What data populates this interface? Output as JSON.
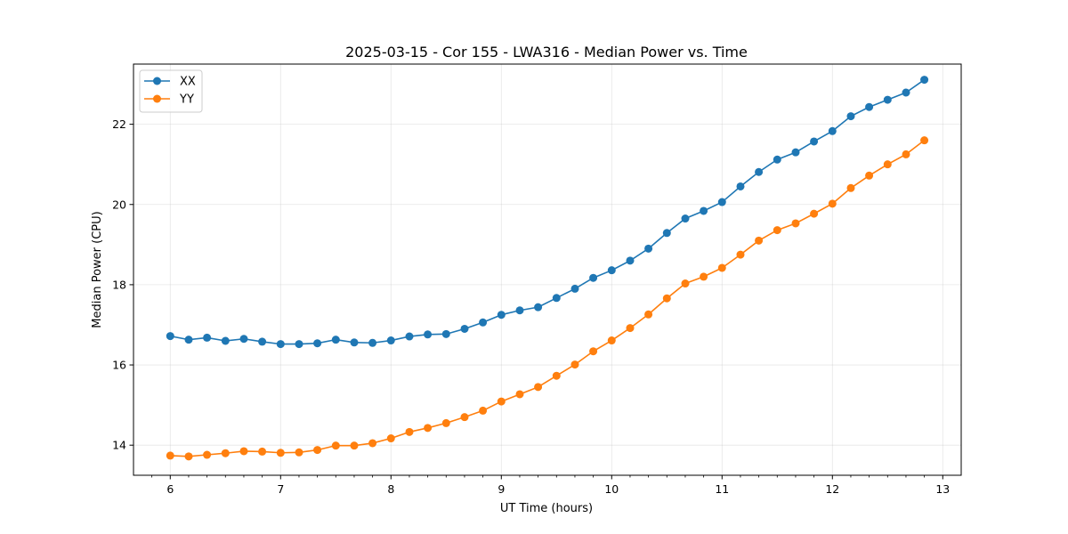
{
  "chart_data": {
    "type": "line",
    "title": "2025-03-15 - Cor 155 - LWA316 - Median Power vs. Time",
    "xlabel": "UT Time (hours)",
    "ylabel": "Median Power (CPU)",
    "xlim": [
      5.667,
      13.167
    ],
    "ylim": [
      13.25,
      23.5
    ],
    "xticks": [
      6,
      7,
      8,
      9,
      10,
      11,
      12,
      13
    ],
    "xtick_labels": [
      "6",
      "7",
      "8",
      "9",
      "10",
      "11",
      "12",
      "13"
    ],
    "xminor_step": 0.1667,
    "yticks": [
      14,
      16,
      18,
      20,
      22
    ],
    "ytick_labels": [
      "14",
      "16",
      "18",
      "20",
      "22"
    ],
    "grid": true,
    "legend_position": "top-left",
    "x": [
      6.0,
      6.167,
      6.333,
      6.5,
      6.667,
      6.833,
      7.0,
      7.167,
      7.333,
      7.5,
      7.667,
      7.833,
      8.0,
      8.167,
      8.333,
      8.5,
      8.667,
      8.833,
      9.0,
      9.167,
      9.333,
      9.5,
      9.667,
      9.833,
      10.0,
      10.167,
      10.333,
      10.5,
      10.667,
      10.833,
      11.0,
      11.167,
      11.333,
      11.5,
      11.667,
      11.833,
      12.0,
      12.167,
      12.333,
      12.5,
      12.667,
      12.833
    ],
    "series": [
      {
        "name": "XX",
        "color": "#1f77b4",
        "values": [
          16.72,
          16.63,
          16.68,
          16.6,
          16.65,
          16.58,
          16.52,
          16.52,
          16.54,
          16.63,
          16.56,
          16.55,
          16.61,
          16.71,
          16.76,
          16.77,
          16.9,
          17.06,
          17.25,
          17.36,
          17.44,
          17.67,
          17.9,
          18.17,
          18.36,
          18.6,
          18.9,
          19.29,
          19.65,
          19.84,
          20.06,
          20.45,
          20.81,
          21.12,
          21.3,
          21.57,
          21.83,
          22.2,
          22.43,
          22.61,
          22.79,
          23.11
        ]
      },
      {
        "name": "YY",
        "color": "#ff7f0e",
        "values": [
          13.74,
          13.72,
          13.76,
          13.8,
          13.85,
          13.84,
          13.81,
          13.82,
          13.88,
          13.99,
          13.99,
          14.05,
          14.17,
          14.33,
          14.43,
          14.55,
          14.7,
          14.86,
          15.09,
          15.27,
          15.45,
          15.73,
          16.01,
          16.34,
          16.61,
          16.92,
          17.26,
          17.66,
          18.03,
          18.2,
          18.42,
          18.75,
          19.1,
          19.36,
          19.53,
          19.77,
          20.02,
          20.41,
          20.72,
          21.0,
          21.25,
          21.6
        ]
      }
    ]
  }
}
